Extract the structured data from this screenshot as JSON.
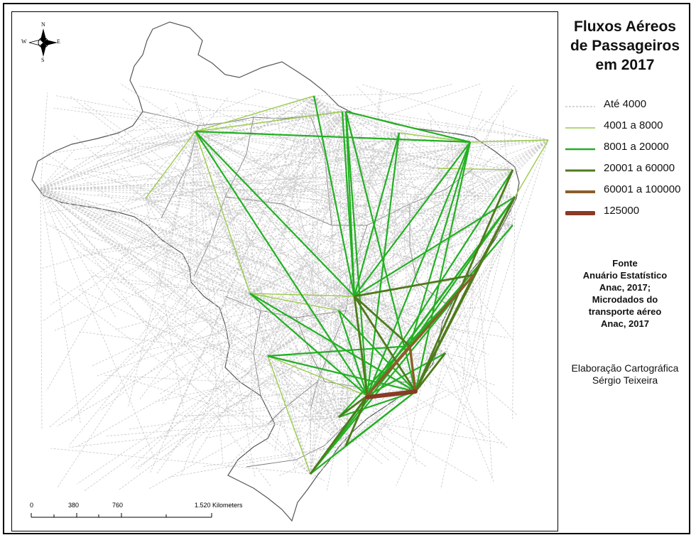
{
  "title": {
    "line1": "Fluxos Aéreos",
    "line2": "de Passageiros",
    "line3": "em 2017"
  },
  "legend": [
    {
      "label": "Até 4000",
      "color": "#c8c8c8",
      "style": "dashed"
    },
    {
      "label": "4001 a 8000",
      "color": "#9ccc4a",
      "style": "solid"
    },
    {
      "label": "8001 a 20000",
      "color": "#22b022",
      "style": "solid"
    },
    {
      "label": "20001 a 60000",
      "color": "#4f7a1c",
      "style": "solid"
    },
    {
      "label": "60001 a 100000",
      "color": "#8b5e2a",
      "style": "solid"
    },
    {
      "label": "125000",
      "color": "#8a3a26",
      "style": "solid"
    }
  ],
  "source": {
    "heading": "Fonte",
    "line1": "Anuário Estatístico",
    "line2": "Anac, 2017;",
    "line3": "Microdados do",
    "line4": "transporte aéreo",
    "line5": "Anac, 2017"
  },
  "credit": {
    "line1": "Elaboração Cartográfica",
    "line2": "Sérgio Teixeira"
  },
  "scalebar": {
    "labels": [
      "0",
      "380",
      "760",
      "1.520 Kilometers"
    ]
  },
  "compass": {
    "n": "N",
    "s": "S",
    "e": "E",
    "w": "W"
  },
  "colors": {
    "land_border": "#555555",
    "state_border": "#777777",
    "frame": "#000000"
  },
  "icons": {
    "compass": "compass-rose-icon"
  }
}
